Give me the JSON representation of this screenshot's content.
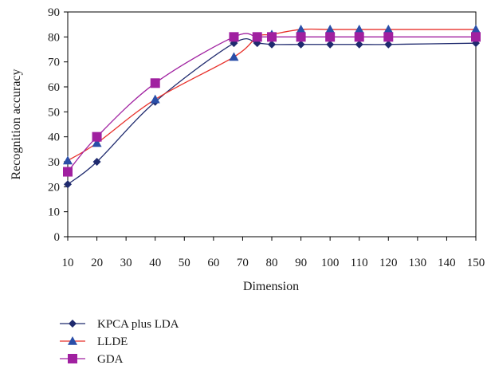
{
  "chart_data": {
    "type": "line",
    "xlabel": "Dimension",
    "ylabel": "Recognition accuracy",
    "xlim": [
      10,
      150
    ],
    "ylim": [
      0,
      90
    ],
    "x_ticks": [
      10,
      20,
      30,
      40,
      50,
      60,
      70,
      80,
      90,
      100,
      110,
      120,
      130,
      140,
      150
    ],
    "y_ticks": [
      0,
      10,
      20,
      30,
      40,
      50,
      60,
      70,
      80,
      90
    ],
    "grid": false,
    "legend_position": "bottom-left",
    "series": [
      {
        "name": "KPCA plus LDA",
        "color": "#1f2a6e",
        "marker": "diamond",
        "x": [
          10,
          20,
          40,
          67,
          75,
          80,
          90,
          100,
          110,
          120,
          150
        ],
        "y": [
          21,
          30,
          54,
          77.5,
          77.5,
          77,
          77,
          77,
          77,
          77,
          77.5
        ]
      },
      {
        "name": "LLDE",
        "color": "#e8302a",
        "marker": "triangle",
        "marker_color": "#2a4ea8",
        "x": [
          10,
          20,
          40,
          67,
          75,
          80,
          90,
          100,
          110,
          120,
          150
        ],
        "y": [
          30.5,
          37.5,
          55,
          72,
          80,
          81,
          83,
          83,
          83,
          83,
          83
        ]
      },
      {
        "name": "GDA",
        "color": "#a020a0",
        "marker": "square",
        "x": [
          10,
          20,
          40,
          67,
          75,
          80,
          90,
          100,
          110,
          120,
          150
        ],
        "y": [
          26,
          40,
          61.5,
          80,
          80,
          80,
          80,
          80,
          80,
          80,
          80
        ]
      }
    ]
  }
}
